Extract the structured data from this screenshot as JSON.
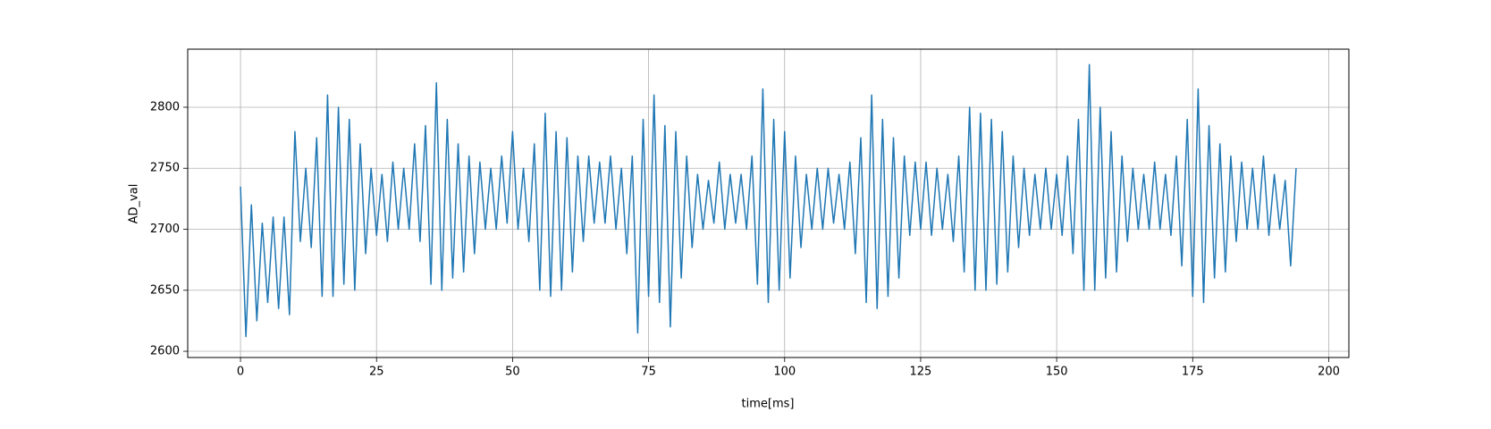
{
  "chart_data": {
    "type": "line",
    "x_label": "time[ms]",
    "y_label": "AD_val",
    "xlim": [
      -9.7,
      203.7
    ],
    "ylim": [
      2594.9,
      2847.6
    ],
    "xticks": [
      0,
      25,
      50,
      75,
      100,
      125,
      150,
      175,
      200
    ],
    "yticks": [
      2600,
      2650,
      2700,
      2750,
      2800
    ],
    "grid": true,
    "x": [
      0,
      1,
      2,
      3,
      4,
      5,
      6,
      7,
      8,
      9,
      10,
      11,
      12,
      13,
      14,
      15,
      16,
      17,
      18,
      19,
      20,
      21,
      22,
      23,
      24,
      25,
      26,
      27,
      28,
      29,
      30,
      31,
      32,
      33,
      34,
      35,
      36,
      37,
      38,
      39,
      40,
      41,
      42,
      43,
      44,
      45,
      46,
      47,
      48,
      49,
      50,
      51,
      52,
      53,
      54,
      55,
      56,
      57,
      58,
      59,
      60,
      61,
      62,
      63,
      64,
      65,
      66,
      67,
      68,
      69,
      70,
      71,
      72,
      73,
      74,
      75,
      76,
      77,
      78,
      79,
      80,
      81,
      82,
      83,
      84,
      85,
      86,
      87,
      88,
      89,
      90,
      91,
      92,
      93,
      94,
      95,
      96,
      97,
      98,
      99,
      100,
      101,
      102,
      103,
      104,
      105,
      106,
      107,
      108,
      109,
      110,
      111,
      112,
      113,
      114,
      115,
      116,
      117,
      118,
      119,
      120,
      121,
      122,
      123,
      124,
      125,
      126,
      127,
      128,
      129,
      130,
      131,
      132,
      133,
      134,
      135,
      136,
      137,
      138,
      139,
      140,
      141,
      142,
      143,
      144,
      145,
      146,
      147,
      148,
      149,
      150,
      151,
      152,
      153,
      154,
      155,
      156,
      157,
      158,
      159,
      160,
      161,
      162,
      163,
      164,
      165,
      166,
      167,
      168,
      169,
      170,
      171,
      172,
      173,
      174,
      175,
      176,
      177,
      178,
      179,
      180,
      181,
      182,
      183,
      184,
      185,
      186,
      187,
      188,
      189,
      190,
      191,
      192,
      193,
      194
    ],
    "series": [
      {
        "color": "#1f77b4",
        "values": [
          2735,
          2612,
          2720,
          2625,
          2705,
          2640,
          2710,
          2635,
          2710,
          2630,
          2780,
          2690,
          2750,
          2685,
          2775,
          2645,
          2810,
          2645,
          2800,
          2655,
          2790,
          2650,
          2770,
          2680,
          2750,
          2695,
          2745,
          2690,
          2755,
          2700,
          2750,
          2700,
          2770,
          2690,
          2785,
          2655,
          2820,
          2650,
          2790,
          2660,
          2770,
          2665,
          2760,
          2680,
          2755,
          2700,
          2750,
          2700,
          2760,
          2705,
          2780,
          2700,
          2750,
          2690,
          2770,
          2650,
          2795,
          2645,
          2780,
          2650,
          2775,
          2665,
          2760,
          2690,
          2760,
          2705,
          2755,
          2705,
          2760,
          2700,
          2750,
          2680,
          2760,
          2615,
          2790,
          2645,
          2810,
          2640,
          2785,
          2620,
          2780,
          2660,
          2760,
          2685,
          2745,
          2700,
          2740,
          2705,
          2755,
          2700,
          2745,
          2705,
          2745,
          2700,
          2760,
          2655,
          2815,
          2640,
          2790,
          2650,
          2780,
          2660,
          2760,
          2685,
          2745,
          2700,
          2750,
          2700,
          2750,
          2705,
          2745,
          2700,
          2755,
          2680,
          2775,
          2640,
          2810,
          2635,
          2790,
          2645,
          2775,
          2660,
          2760,
          2695,
          2755,
          2700,
          2755,
          2695,
          2750,
          2700,
          2745,
          2690,
          2760,
          2665,
          2800,
          2650,
          2795,
          2650,
          2790,
          2655,
          2780,
          2665,
          2760,
          2685,
          2750,
          2695,
          2745,
          2700,
          2750,
          2700,
          2745,
          2695,
          2760,
          2680,
          2790,
          2650,
          2835,
          2650,
          2800,
          2660,
          2780,
          2665,
          2760,
          2690,
          2750,
          2700,
          2745,
          2700,
          2755,
          2700,
          2745,
          2695,
          2760,
          2670,
          2790,
          2645,
          2815,
          2640,
          2785,
          2660,
          2770,
          2665,
          2760,
          2690,
          2755,
          2700,
          2750,
          2700,
          2760,
          2695,
          2745,
          2700,
          2740,
          2670,
          2750
        ]
      }
    ]
  }
}
